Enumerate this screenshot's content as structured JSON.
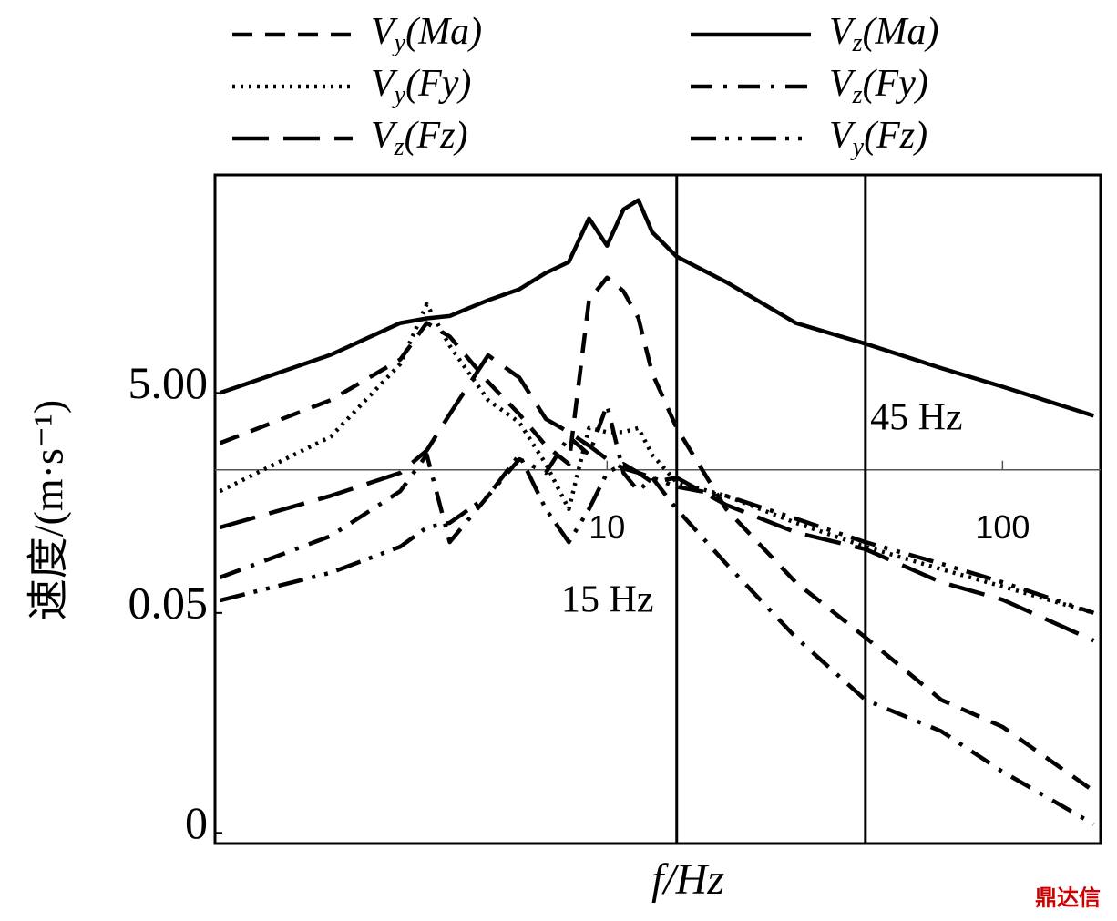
{
  "chart_data": {
    "type": "line",
    "xlabel": "f/Hz",
    "ylabel": "速度/(m·s⁻¹)",
    "x": [
      1.05,
      2,
      3,
      3.5,
      4,
      5,
      6,
      7,
      8,
      9,
      10,
      11,
      12,
      13,
      15,
      20,
      30,
      45,
      70,
      100,
      170
    ],
    "series": [
      {
        "name": "Vy(Ma)",
        "color": "#000000",
        "dash": "22,14",
        "values": [
          1.75,
          4.3,
          10.1,
          21.6,
          16.3,
          6.3,
          3.2,
          1.66,
          1.13,
          35,
          56,
          42,
          24,
          7.6,
          2.4,
          0.44,
          0.095,
          0.03,
          0.0081,
          0.0046,
          0.0012
        ]
      },
      {
        "name": "Vz(Ma)",
        "color": "#000000",
        "dash": "none",
        "values": [
          5,
          11.1,
          21.6,
          23.8,
          25,
          34.8,
          43.8,
          61.7,
          77.5,
          193,
          109,
          233,
          283,
          145,
          87,
          51,
          21.6,
          14,
          8.4,
          5.7,
          3.1
        ]
      },
      {
        "name": "Vy(Fy)",
        "color": "#000000",
        "dash": "3,6",
        "values": [
          0.64,
          2.0,
          9.2,
          32,
          13.4,
          4.3,
          2.7,
          1.13,
          0.44,
          2.4,
          2.2,
          2.2,
          2.4,
          1.37,
          0.77,
          0.58,
          0.33,
          0.2,
          0.125,
          0.087,
          0.05
        ]
      },
      {
        "name": "Vz(Fy)",
        "color": "#000000",
        "dash": "24,12,4,12",
        "values": [
          0.105,
          0.25,
          0.64,
          1.37,
          0.22,
          0.58,
          1.25,
          0.94,
          2.0,
          1.37,
          3.9,
          0.94,
          0.64,
          0.85,
          0.44,
          0.14,
          0.03,
          0.0081,
          0.0042,
          0.0018,
          0.0006
        ]
      },
      {
        "name": "Vz(Fz)",
        "color": "#000000",
        "dash": "40,16",
        "values": [
          0.3,
          0.58,
          0.94,
          1.5,
          3.2,
          11,
          6.9,
          2.9,
          2.2,
          1.66,
          1.25,
          1.03,
          0.94,
          0.77,
          0.85,
          0.48,
          0.27,
          0.19,
          0.095,
          0.066,
          0.028
        ]
      },
      {
        "name": "Vy(Fz)",
        "color": "#000000",
        "dash": "28,10,4,10,4,10",
        "values": [
          0.065,
          0.116,
          0.2,
          0.3,
          0.33,
          0.58,
          1.37,
          0.44,
          0.22,
          0.44,
          0.94,
          1.13,
          0.94,
          0.85,
          0.7,
          0.58,
          0.36,
          0.22,
          0.14,
          0.095,
          0.05
        ]
      }
    ],
    "xlim": [
      1.02,
      177
    ],
    "ylim": [
      0.0004,
      480
    ],
    "xscale": "log",
    "yscale": "log",
    "xticks": [
      10,
      100
    ],
    "yticks": [
      {
        "value": 0.0005,
        "label": "0"
      },
      0.05,
      {
        "value": 5,
        "label": "5.00"
      }
    ],
    "x_axis_at": 1,
    "vlines": [
      {
        "x": 15,
        "label": "15 Hz"
      },
      {
        "x": 45,
        "label": "45 Hz"
      }
    ],
    "watermark": "鼎达信"
  }
}
